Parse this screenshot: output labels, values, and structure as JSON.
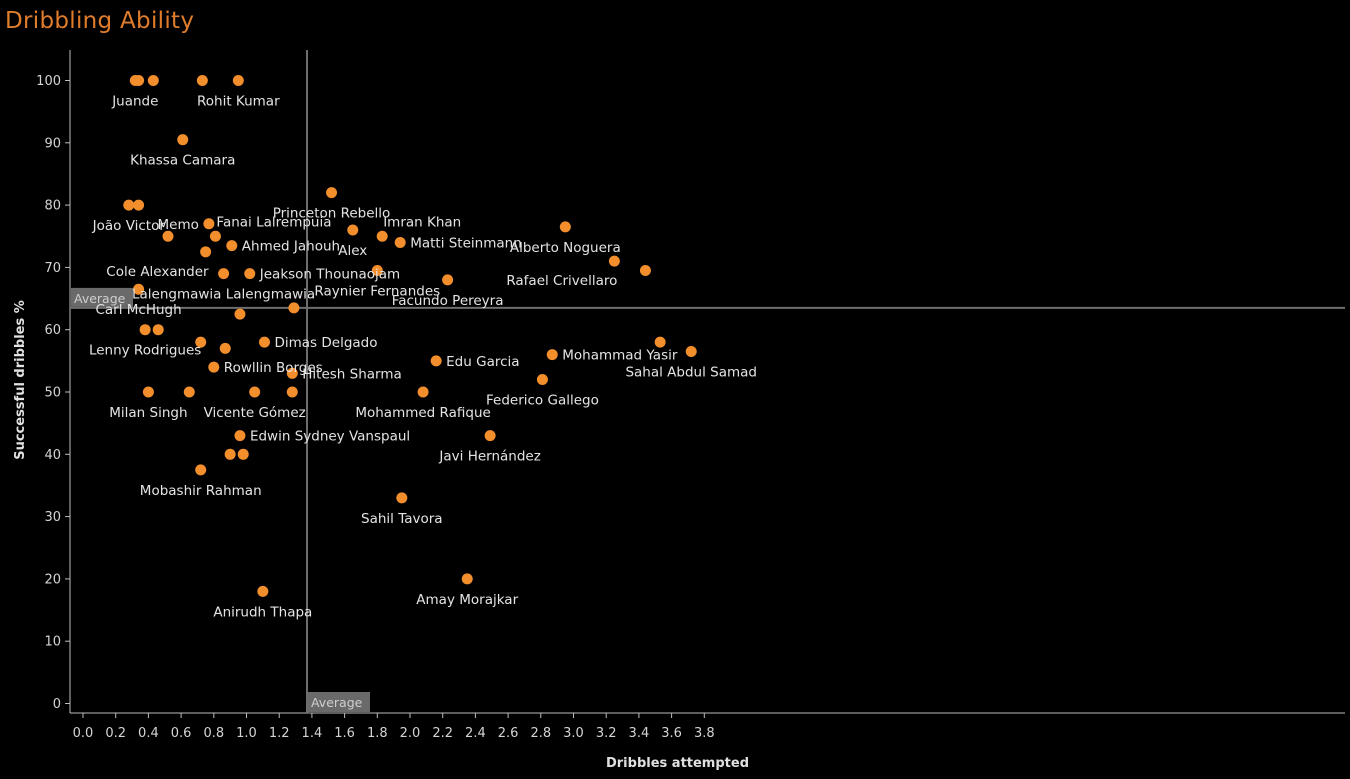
{
  "title": "Dribbling Ability",
  "accent_color": "#f28e2b",
  "chart_data": {
    "type": "scatter",
    "title": "Dribbling Ability",
    "xlabel": "Dribbles attempted",
    "ylabel": "Successful dribbles %",
    "xlim": [
      -0.04,
      3.9
    ],
    "ylim": [
      -2,
      106
    ],
    "xticks": [
      "0.0",
      "0.2",
      "0.4",
      "0.6",
      "0.8",
      "1.0",
      "1.2",
      "1.4",
      "1.6",
      "1.8",
      "2.0",
      "2.2",
      "2.4",
      "2.6",
      "2.8",
      "3.0",
      "3.2",
      "3.4",
      "3.6",
      "3.8"
    ],
    "yticks": [
      "0",
      "10",
      "20",
      "30",
      "40",
      "50",
      "60",
      "70",
      "80",
      "90",
      "100"
    ],
    "average": {
      "x": 1.37,
      "y": 63.5,
      "x_label": "Average",
      "y_label": "Average"
    },
    "marker_color": "#f28e2b",
    "points": [
      {
        "x": 0.28,
        "y": 80,
        "label": "João Victor",
        "pos": "below"
      },
      {
        "x": 0.34,
        "y": 80,
        "label": "",
        "pos": "below"
      },
      {
        "x": 0.32,
        "y": 100,
        "label": "Juande",
        "pos": "below"
      },
      {
        "x": 0.34,
        "y": 100,
        "label": "",
        "pos": "below"
      },
      {
        "x": 0.43,
        "y": 100,
        "label": "",
        "pos": "below"
      },
      {
        "x": 0.73,
        "y": 100,
        "label": "",
        "pos": "below"
      },
      {
        "x": 0.95,
        "y": 100,
        "label": "Rohit Kumar",
        "pos": "below"
      },
      {
        "x": 0.61,
        "y": 90.5,
        "label": "Khassa Camara",
        "pos": "below"
      },
      {
        "x": 0.52,
        "y": 75,
        "label": "",
        "pos": "below"
      },
      {
        "x": 0.75,
        "y": 72.5,
        "label": "Cole Alexander",
        "pos": "below-left"
      },
      {
        "x": 0.77,
        "y": 77,
        "label": "Memo",
        "pos": "left"
      },
      {
        "x": 0.81,
        "y": 75,
        "label": "Fanai Lalrempuia",
        "pos": "above-right"
      },
      {
        "x": 0.91,
        "y": 73.5,
        "label": "Ahmed Jahouh",
        "pos": "right"
      },
      {
        "x": 0.86,
        "y": 69,
        "label": "Lalengmawia Lalengmawia",
        "pos": "below"
      },
      {
        "x": 1.02,
        "y": 69,
        "label": "Jeakson Thounaojam",
        "pos": "right"
      },
      {
        "x": 0.34,
        "y": 66.5,
        "label": "Carl McHugh",
        "pos": "below"
      },
      {
        "x": 0.96,
        "y": 62.5,
        "label": "",
        "pos": "below"
      },
      {
        "x": 1.29,
        "y": 63.5,
        "label": "",
        "pos": "below"
      },
      {
        "x": 0.38,
        "y": 60,
        "label": "Lenny Rodrigues",
        "pos": "below"
      },
      {
        "x": 0.46,
        "y": 60,
        "label": "",
        "pos": "below"
      },
      {
        "x": 0.72,
        "y": 58,
        "label": "",
        "pos": "below"
      },
      {
        "x": 0.87,
        "y": 57,
        "label": "",
        "pos": "below"
      },
      {
        "x": 1.11,
        "y": 58,
        "label": "Dimas Delgado",
        "pos": "right"
      },
      {
        "x": 0.8,
        "y": 54,
        "label": "Rowllin Borges",
        "pos": "right"
      },
      {
        "x": 1.28,
        "y": 53,
        "label": "Hitesh Sharma",
        "pos": "right"
      },
      {
        "x": 0.4,
        "y": 50,
        "label": "Milan Singh",
        "pos": "below"
      },
      {
        "x": 0.65,
        "y": 50,
        "label": "",
        "pos": "below"
      },
      {
        "x": 1.05,
        "y": 50,
        "label": "Vicente Gómez",
        "pos": "below"
      },
      {
        "x": 1.28,
        "y": 50,
        "label": "",
        "pos": "below"
      },
      {
        "x": 0.96,
        "y": 43,
        "label": "Edwin Sydney Vanspaul",
        "pos": "right"
      },
      {
        "x": 0.9,
        "y": 40,
        "label": "",
        "pos": "below"
      },
      {
        "x": 0.98,
        "y": 40,
        "label": "",
        "pos": "below"
      },
      {
        "x": 0.72,
        "y": 37.5,
        "label": "Mobashir Rahman",
        "pos": "below"
      },
      {
        "x": 1.1,
        "y": 18,
        "label": "Anirudh Thapa",
        "pos": "below"
      },
      {
        "x": 1.52,
        "y": 82,
        "label": "Princeton Rebello",
        "pos": "below"
      },
      {
        "x": 1.65,
        "y": 76,
        "label": "Alex",
        "pos": "below"
      },
      {
        "x": 1.83,
        "y": 75,
        "label": "Imran Khan",
        "pos": "above-right"
      },
      {
        "x": 1.94,
        "y": 74,
        "label": "Matti Steinmann",
        "pos": "right"
      },
      {
        "x": 1.8,
        "y": 69.5,
        "label": "Raynier Fernandes",
        "pos": "below"
      },
      {
        "x": 2.23,
        "y": 68,
        "label": "Facundo Pereyra",
        "pos": "below"
      },
      {
        "x": 2.16,
        "y": 55,
        "label": "Edu Garcia",
        "pos": "right"
      },
      {
        "x": 2.08,
        "y": 50,
        "label": "Mohammed Rafique",
        "pos": "below"
      },
      {
        "x": 1.95,
        "y": 33,
        "label": "Sahil Tavora",
        "pos": "below"
      },
      {
        "x": 2.35,
        "y": 20,
        "label": "Amay Morajkar",
        "pos": "below"
      },
      {
        "x": 2.49,
        "y": 43,
        "label": "Javi Hernández",
        "pos": "below"
      },
      {
        "x": 2.95,
        "y": 76.5,
        "label": "Alberto Noguera",
        "pos": "below"
      },
      {
        "x": 3.25,
        "y": 71,
        "label": "Rafael Crivellaro",
        "pos": "below-left"
      },
      {
        "x": 3.44,
        "y": 69.5,
        "label": "",
        "pos": "below"
      },
      {
        "x": 2.87,
        "y": 56,
        "label": "Mohammad Yasir",
        "pos": "right"
      },
      {
        "x": 2.81,
        "y": 52,
        "label": "Federico Gallego",
        "pos": "below"
      },
      {
        "x": 3.53,
        "y": 58,
        "label": "",
        "pos": "below"
      },
      {
        "x": 3.72,
        "y": 56.5,
        "label": "Sahal Abdul Samad",
        "pos": "below"
      }
    ]
  }
}
